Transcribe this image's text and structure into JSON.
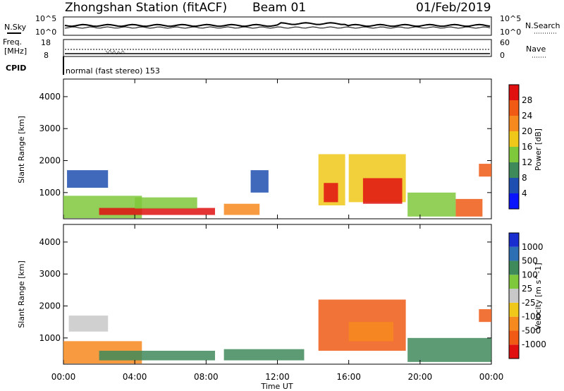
{
  "header": {
    "station": "Zhongshan Station (fitACF)",
    "beam": "Beam 01",
    "date": "01/Feb/2019"
  },
  "top_panels": {
    "noise_left_label": "N.Sky",
    "noise_right_label": "N.Search",
    "noise_scale_top": "10^5",
    "noise_scale_bottom": "10^0",
    "freq_label_top": "Freq.",
    "freq_label_unit": "[MHz]",
    "freq_tick_top": "18",
    "freq_tick_bottom": "8",
    "nave_label": "Nave",
    "nave_tick_top": "60",
    "nave_tick_bottom": "0",
    "cpid_label": "CPID",
    "cpid_text": "normal (fast stereo) 153"
  },
  "colors": {
    "power": [
      "#0a14ff",
      "#1f4fb0",
      "#3f8a5a",
      "#7fc83c",
      "#f0c81a",
      "#f78a1e",
      "#f05a14",
      "#e01010"
    ],
    "velocity": [
      "#1a2ecf",
      "#2d6fb3",
      "#3f8a5a",
      "#7fc83c",
      "#c8c8c8",
      "#f0c81a",
      "#f78a1e",
      "#f05a14",
      "#e01010"
    ]
  },
  "chart_data": [
    {
      "type": "heatmap",
      "panel": "power",
      "ylabel": "Slant Range [km]",
      "yticks": [
        1000,
        2000,
        3000,
        4000
      ],
      "ylim": [
        180,
        4550
      ],
      "xticks": [
        "00:00",
        "04:00",
        "08:00",
        "12:00",
        "16:00",
        "20:00",
        "00:00"
      ],
      "xlim_hours": [
        0,
        24
      ],
      "colorbar_label": "Power [dB]",
      "colorbar_ticks": [
        "4",
        "8",
        "12",
        "16",
        "20",
        "24",
        "28"
      ],
      "regions": [
        {
          "t0": 0.0,
          "t1": 4.4,
          "r0": 200,
          "r1": 900,
          "level": 3
        },
        {
          "t0": 0.2,
          "t1": 2.5,
          "r0": 1150,
          "r1": 1700,
          "level": 1
        },
        {
          "t0": 2.0,
          "t1": 8.5,
          "r0": 300,
          "r1": 520,
          "level": 7
        },
        {
          "t0": 4.0,
          "t1": 7.5,
          "r0": 500,
          "r1": 850,
          "level": 3
        },
        {
          "t0": 9.0,
          "t1": 11.0,
          "r0": 300,
          "r1": 650,
          "level": 5
        },
        {
          "t0": 10.5,
          "t1": 11.5,
          "r0": 1000,
          "r1": 1700,
          "level": 1
        },
        {
          "t0": 14.3,
          "t1": 15.8,
          "r0": 600,
          "r1": 2200,
          "level": 4
        },
        {
          "t0": 14.6,
          "t1": 15.4,
          "r0": 700,
          "r1": 1300,
          "level": 7
        },
        {
          "t0": 16.0,
          "t1": 19.2,
          "r0": 700,
          "r1": 2200,
          "level": 4
        },
        {
          "t0": 16.8,
          "t1": 19.0,
          "r0": 650,
          "r1": 1450,
          "level": 7
        },
        {
          "t0": 19.3,
          "t1": 22.0,
          "r0": 250,
          "r1": 1000,
          "level": 3
        },
        {
          "t0": 22.0,
          "t1": 23.5,
          "r0": 250,
          "r1": 800,
          "level": 6
        },
        {
          "t0": 23.3,
          "t1": 24.0,
          "r0": 1500,
          "r1": 1900,
          "level": 6
        }
      ]
    },
    {
      "type": "heatmap",
      "panel": "velocity",
      "ylabel": "Slant Range [km]",
      "yticks": [
        1000,
        2000,
        3000,
        4000
      ],
      "ylim": [
        180,
        4550
      ],
      "xticks": [
        "00:00",
        "04:00",
        "08:00",
        "12:00",
        "16:00",
        "20:00",
        "00:00"
      ],
      "xlim_hours": [
        0,
        24
      ],
      "xlabel": "Time UT",
      "colorbar_label": "Velocity [m s^-1]",
      "colorbar_ticks": [
        "1000",
        "500",
        "100",
        "25",
        "-25",
        "-100",
        "-500",
        "-1000"
      ],
      "regions": [
        {
          "t0": 0.0,
          "t1": 4.4,
          "r0": 200,
          "r1": 900,
          "level": 6
        },
        {
          "t0": 0.3,
          "t1": 2.5,
          "r0": 1200,
          "r1": 1700,
          "level": 4
        },
        {
          "t0": 2.0,
          "t1": 8.5,
          "r0": 300,
          "r1": 600,
          "level": 2
        },
        {
          "t0": 9.0,
          "t1": 13.5,
          "r0": 300,
          "r1": 650,
          "level": 2
        },
        {
          "t0": 14.3,
          "t1": 19.2,
          "r0": 600,
          "r1": 2200,
          "level": 7
        },
        {
          "t0": 16.0,
          "t1": 18.5,
          "r0": 900,
          "r1": 1500,
          "level": 6
        },
        {
          "t0": 19.3,
          "t1": 24.0,
          "r0": 250,
          "r1": 1000,
          "level": 2
        },
        {
          "t0": 23.3,
          "t1": 24.0,
          "r0": 1500,
          "r1": 1900,
          "level": 7
        }
      ]
    }
  ]
}
